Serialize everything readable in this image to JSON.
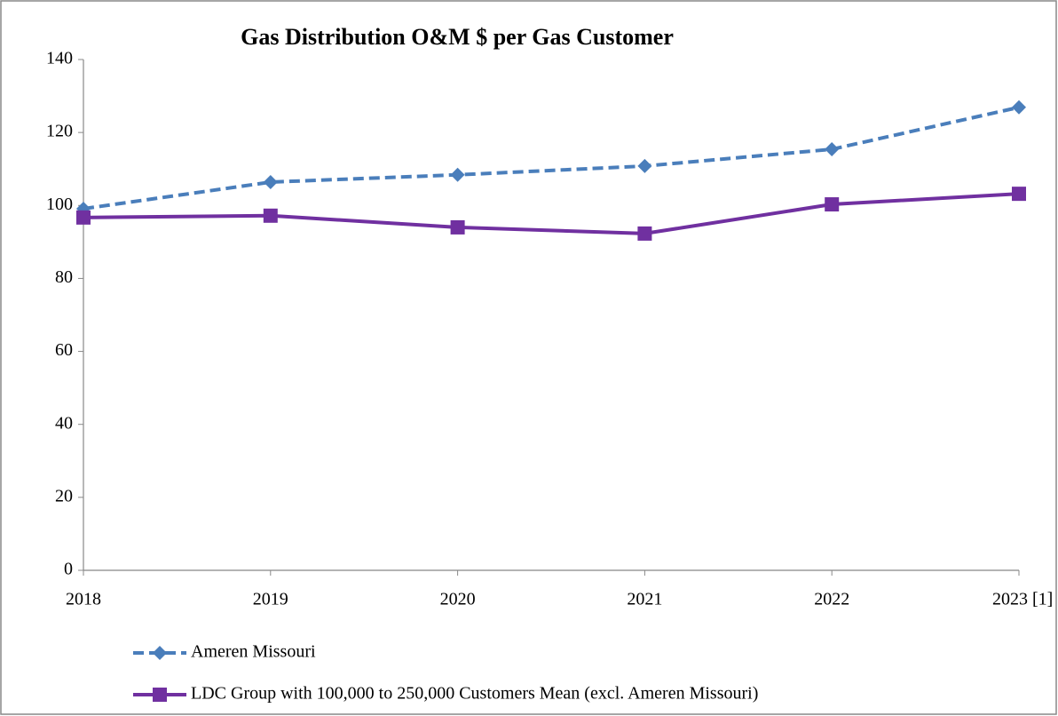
{
  "chart_data": {
    "type": "line",
    "title": "Gas Distribution O&M $ per Gas Customer",
    "categories": [
      "2018",
      "2019",
      "2020",
      "2021",
      "2022",
      "2023 [1]"
    ],
    "series": [
      {
        "name": "Ameren Missouri",
        "color": "#4a7ebb",
        "dash": true,
        "marker": "diamond",
        "values": [
          99.1,
          106.4,
          108.4,
          110.8,
          115.4,
          126.9
        ]
      },
      {
        "name": "LDC Group with 100,000 to 250,000 Customers Mean (excl. Ameren Missouri)",
        "color": "#7030a0",
        "dash": false,
        "marker": "square",
        "values": [
          96.7,
          97.2,
          94.0,
          92.3,
          100.3,
          103.2
        ]
      }
    ],
    "ylim": [
      0,
      140
    ],
    "yticks": [
      0,
      20,
      40,
      60,
      80,
      100,
      120,
      140
    ],
    "grid": false
  }
}
